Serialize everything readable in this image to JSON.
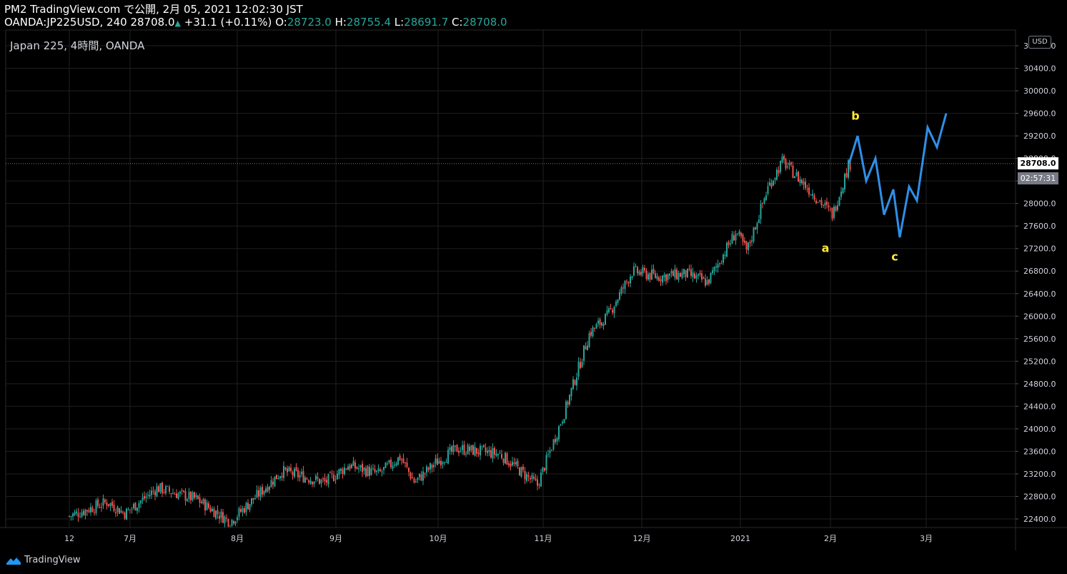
{
  "header": {
    "line1": "PM2 TradingView.com で公開, 2月 05, 2021 12:02:30 JST",
    "symbol": "OANDA:JP225USD, 240",
    "last": "28708.0",
    "change": "+31.1 (+0.11%)",
    "open_label": "O:",
    "open": "28723.0",
    "high_label": "H:",
    "high": "28755.4",
    "low_label": "L:",
    "low": "28691.7",
    "close_label": "C:",
    "close": "28708.0"
  },
  "symbol_title": "Japan 225, 4時間, OANDA",
  "currency_badge": "USD",
  "last_price_tag": "28708.0",
  "countdown_tag": "02:57:31",
  "footer_brand": "TradingView",
  "icons": {
    "up_arrow": "up-triangle-icon",
    "logo": "tradingview-logo-icon"
  },
  "colors": {
    "background": "#000000",
    "up_candle": "#26a69a",
    "down_candle": "#ef5350",
    "projection": "#2f8fe8",
    "wave_label": "#ffeb3b",
    "grid": "#1f1f1f"
  },
  "chart_data": {
    "type": "candlestick",
    "title": "Japan 225, 4時間, OANDA",
    "timeframe": "240",
    "y_ticks": [
      "22400.0",
      "22800.0",
      "23200.0",
      "23600.0",
      "24000.0",
      "24400.0",
      "24800.0",
      "25200.0",
      "25600.0",
      "26000.0",
      "26400.0",
      "26800.0",
      "27200.0",
      "27600.0",
      "28000.0",
      "28400.0",
      "28800.0",
      "29200.0",
      "29600.0",
      "30000.0",
      "30400.0",
      "30800.0"
    ],
    "x_ticks": [
      "12",
      "7月",
      "8月",
      "9月",
      "10月",
      "11月",
      "12月",
      "2021",
      "2月",
      "3月"
    ],
    "price_path": [
      {
        "t": "12",
        "price": 22450
      },
      {
        "t": "7月 (early)",
        "price": 22700
      },
      {
        "t": "7月",
        "price": 22500
      },
      {
        "t": "7月 (mid)",
        "price": 22950
      },
      {
        "t": "7月 (late)",
        "price": 22750
      },
      {
        "t": "8月",
        "price": 22350
      },
      {
        "t": "8月 (mid)",
        "price": 23250
      },
      {
        "t": "9月 (early)",
        "price": 23050
      },
      {
        "t": "9月",
        "price": 23350
      },
      {
        "t": "9月 (mid)",
        "price": 23200
      },
      {
        "t": "9月 (late)",
        "price": 23500
      },
      {
        "t": "10月 (early)",
        "price": 23050
      },
      {
        "t": "10月",
        "price": 23400
      },
      {
        "t": "10月 (mid)",
        "price": 23650
      },
      {
        "t": "10月 (late)",
        "price": 23550
      },
      {
        "t": "11月 (early)",
        "price": 23000
      },
      {
        "t": "11月",
        "price": 24300
      },
      {
        "t": "11月 (mid)",
        "price": 25700
      },
      {
        "t": "11月 (late)",
        "price": 26000
      },
      {
        "t": "12月 (early)",
        "price": 26800
      },
      {
        "t": "12月",
        "price": 26700
      },
      {
        "t": "12月 (mid)",
        "price": 26750
      },
      {
        "t": "12月 (late)",
        "price": 26600
      },
      {
        "t": "2021 (early)",
        "price": 27500
      },
      {
        "t": "2021",
        "price": 27150
      },
      {
        "t": "2021 (mid)",
        "price": 28300
      },
      {
        "t": "1月 (late)",
        "price": 28750
      },
      {
        "t": "2月 (early)",
        "price": 27800
      },
      {
        "t": "2月",
        "price": 28708
      }
    ],
    "projection": {
      "name": "",
      "points": [
        {
          "t": "2月",
          "price": 28708
        },
        {
          "t": "b",
          "price": 29200
        },
        {
          "t": "2月 (mid)",
          "price": 28400
        },
        {
          "t": "2月 (mid2)",
          "price": 28800
        },
        {
          "t": "2月 (late)",
          "price": 27800
        },
        {
          "t": "2月 (late2)",
          "price": 28250
        },
        {
          "t": "c",
          "price": 27400
        },
        {
          "t": "3月 (early)",
          "price": 28300
        },
        {
          "t": "3月 (early2)",
          "price": 28050
        },
        {
          "t": "3月",
          "price": 29350
        },
        {
          "t": "3月 (mid)",
          "price": 29000
        },
        {
          "t": "3月 (late)",
          "price": 29600
        }
      ]
    },
    "wave_labels": [
      {
        "text": "a",
        "price": 27200
      },
      {
        "text": "b",
        "price": 29550
      },
      {
        "text": "c",
        "price": 27050
      }
    ],
    "last_price": 28708.0,
    "ylim": [
      22250,
      30950
    ]
  }
}
